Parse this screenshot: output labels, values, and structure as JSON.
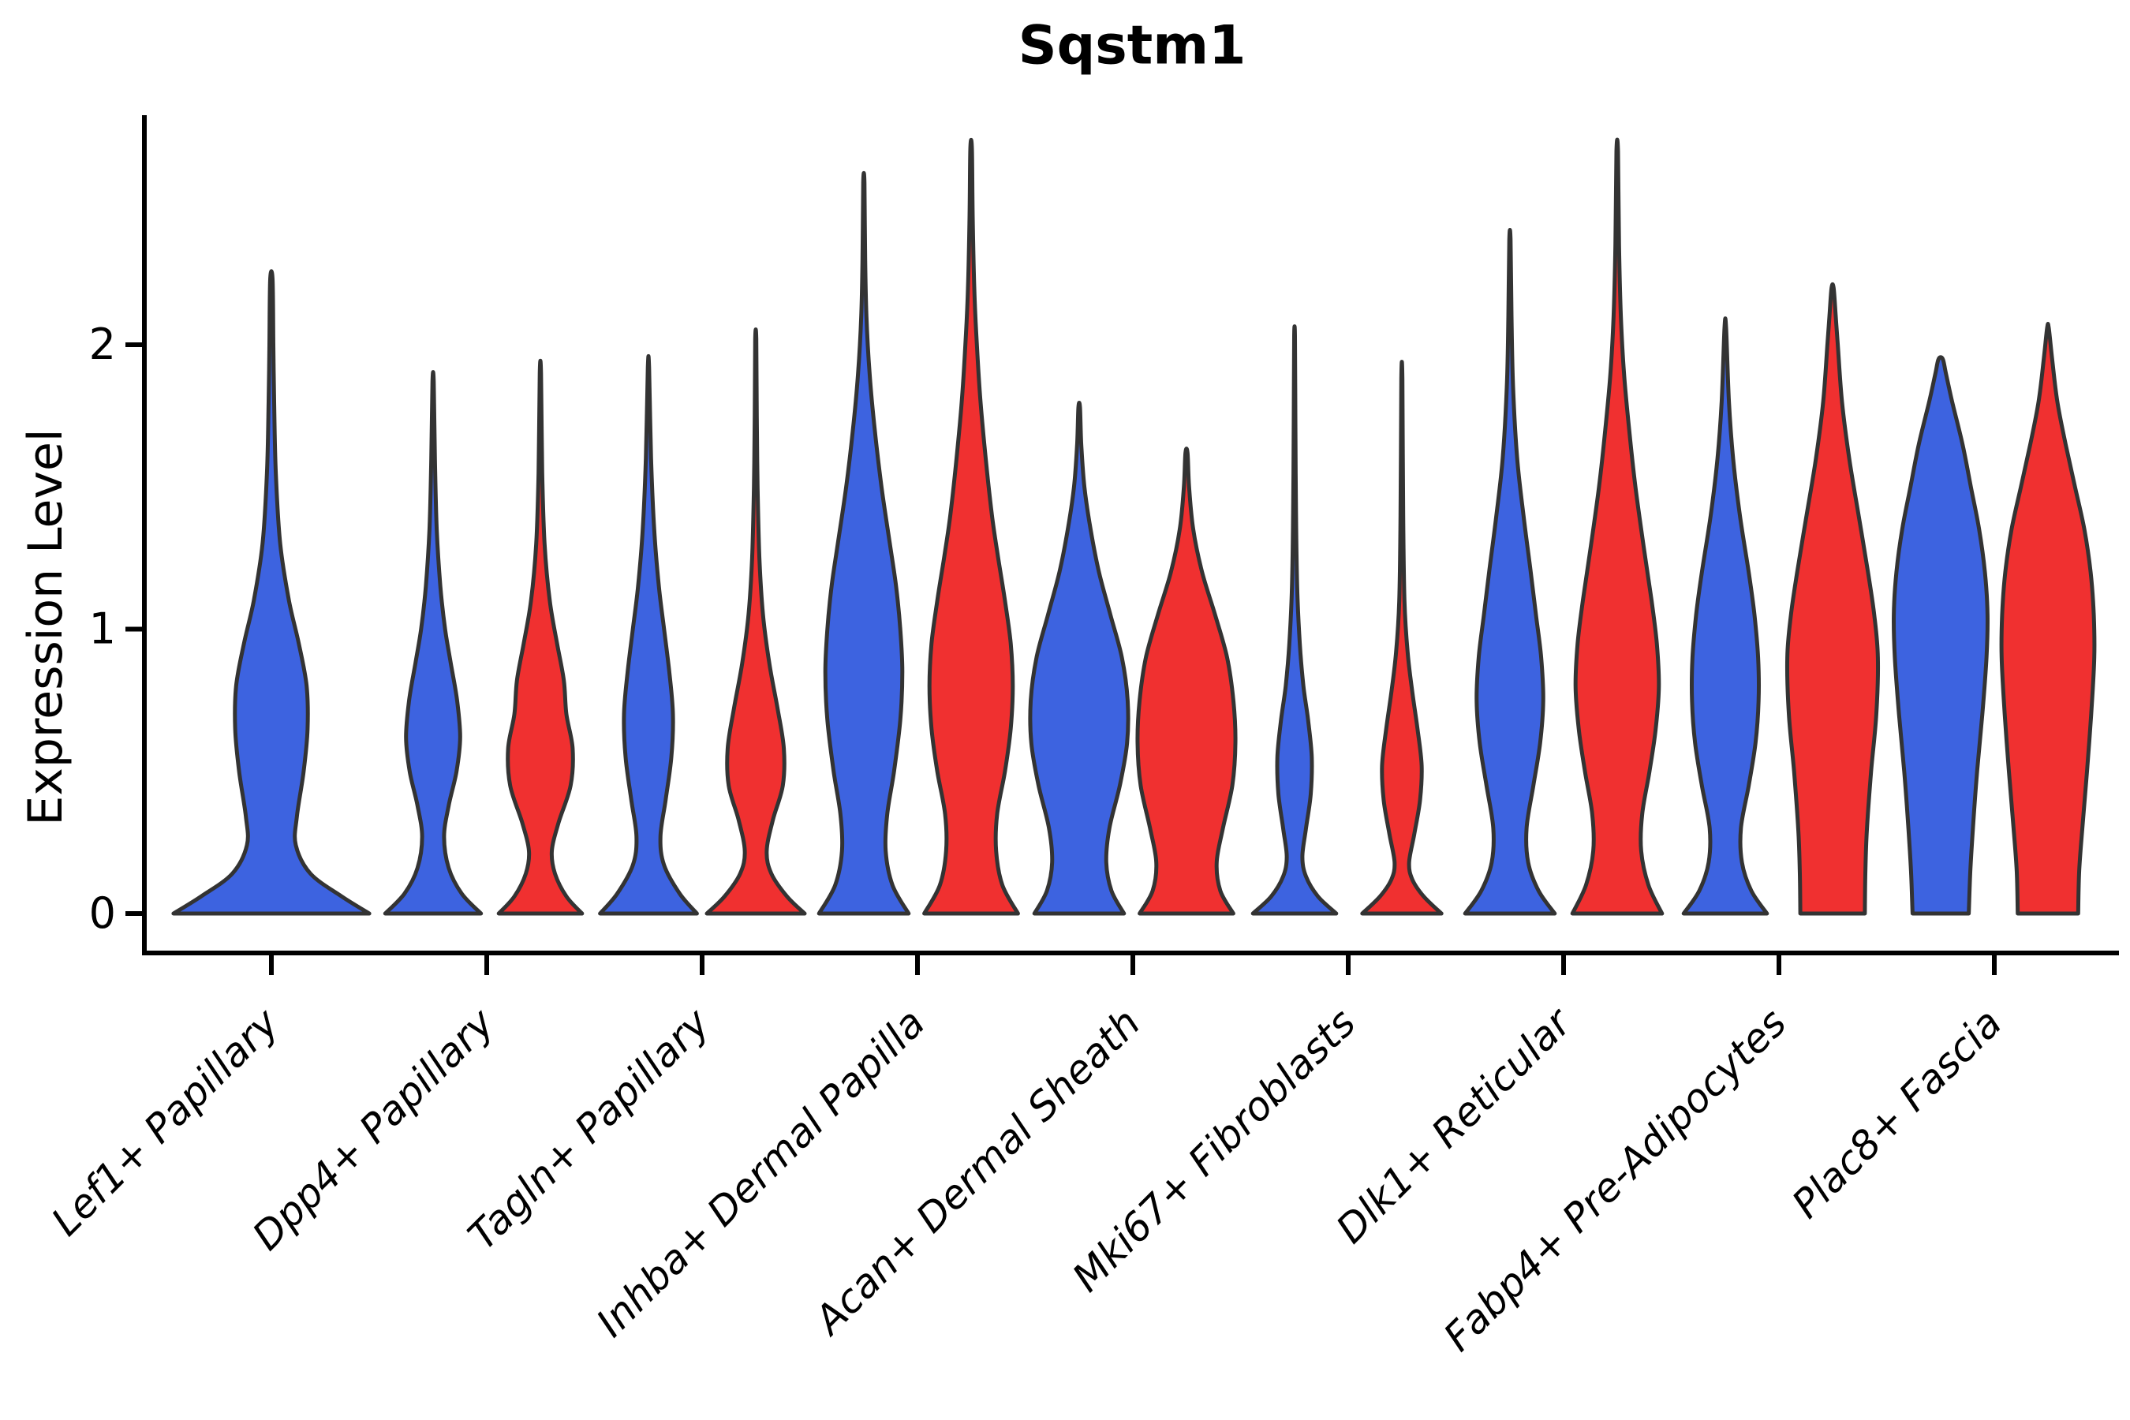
{
  "title": "Sqstm1",
  "y_axis": {
    "label": "Expression Level"
  },
  "colors": {
    "blue": "#3D63E0",
    "red": "#F03030",
    "outline": "#333333",
    "axis": "#000000",
    "background": "#FFFFFF"
  },
  "chart_data": {
    "type": "violin",
    "title": "Sqstm1",
    "ylabel": "Expression Level",
    "yticks": [
      0,
      1,
      2
    ],
    "ylim": [
      -0.15,
      2.85
    ],
    "grid": false,
    "legend": "none",
    "categories": [
      "Lef1+ Papillary",
      "Dpp4+ Papillary",
      "Tagln+ Papillary",
      "Inhba+ Dermal Papilla",
      "Acan+ Dermal Sheath",
      "Mki67+ Fibroblasts",
      "Dlk1+ Reticular",
      "Fabp4+ Pre-Adipocytes",
      "Plac8+ Fascia"
    ],
    "series_colors": {
      "blue": "#3D63E0",
      "red": "#F03030"
    },
    "violins": [
      {
        "category_index": 0,
        "split": "blue",
        "max_value": 2.23,
        "width_scale": 1.88,
        "profile": [
          [
            0,
            1.0
          ],
          [
            0.06,
            0.72
          ],
          [
            0.14,
            0.4
          ],
          [
            0.24,
            0.25
          ],
          [
            0.34,
            0.26
          ],
          [
            0.5,
            0.33
          ],
          [
            0.65,
            0.37
          ],
          [
            0.8,
            0.36
          ],
          [
            0.95,
            0.28
          ],
          [
            1.1,
            0.18
          ],
          [
            1.3,
            0.09
          ],
          [
            1.55,
            0.045
          ],
          [
            1.8,
            0.028
          ],
          [
            2.0,
            0.02
          ],
          [
            2.23,
            0.012
          ]
        ]
      },
      {
        "category_index": 1,
        "split": "blue",
        "max_value": 1.87,
        "width_scale": 1,
        "profile": [
          [
            0,
            0.92
          ],
          [
            0.07,
            0.55
          ],
          [
            0.16,
            0.3
          ],
          [
            0.27,
            0.21
          ],
          [
            0.38,
            0.3
          ],
          [
            0.5,
            0.45
          ],
          [
            0.62,
            0.52
          ],
          [
            0.75,
            0.46
          ],
          [
            0.88,
            0.34
          ],
          [
            1.0,
            0.23
          ],
          [
            1.15,
            0.14
          ],
          [
            1.35,
            0.07
          ],
          [
            1.6,
            0.035
          ],
          [
            1.87,
            0.012
          ]
        ]
      },
      {
        "category_index": 1,
        "split": "red",
        "max_value": 1.9,
        "width_scale": 1,
        "profile": [
          [
            0,
            0.8
          ],
          [
            0.06,
            0.5
          ],
          [
            0.14,
            0.28
          ],
          [
            0.22,
            0.22
          ],
          [
            0.32,
            0.35
          ],
          [
            0.45,
            0.58
          ],
          [
            0.58,
            0.62
          ],
          [
            0.7,
            0.5
          ],
          [
            0.82,
            0.45
          ],
          [
            0.95,
            0.32
          ],
          [
            1.1,
            0.18
          ],
          [
            1.3,
            0.08
          ],
          [
            1.55,
            0.035
          ],
          [
            1.9,
            0.012
          ]
        ]
      },
      {
        "category_index": 2,
        "split": "blue",
        "max_value": 1.92,
        "width_scale": 1,
        "profile": [
          [
            0,
            0.93
          ],
          [
            0.07,
            0.6
          ],
          [
            0.17,
            0.3
          ],
          [
            0.27,
            0.23
          ],
          [
            0.4,
            0.33
          ],
          [
            0.55,
            0.44
          ],
          [
            0.7,
            0.47
          ],
          [
            0.85,
            0.4
          ],
          [
            1.0,
            0.3
          ],
          [
            1.15,
            0.2
          ],
          [
            1.35,
            0.11
          ],
          [
            1.6,
            0.05
          ],
          [
            1.92,
            0.012
          ]
        ]
      },
      {
        "category_index": 2,
        "split": "red",
        "max_value": 2.02,
        "width_scale": 1,
        "profile": [
          [
            0,
            0.94
          ],
          [
            0.06,
            0.6
          ],
          [
            0.14,
            0.3
          ],
          [
            0.22,
            0.21
          ],
          [
            0.33,
            0.33
          ],
          [
            0.45,
            0.52
          ],
          [
            0.58,
            0.54
          ],
          [
            0.72,
            0.42
          ],
          [
            0.88,
            0.26
          ],
          [
            1.05,
            0.14
          ],
          [
            1.25,
            0.07
          ],
          [
            1.5,
            0.035
          ],
          [
            1.75,
            0.02
          ],
          [
            2.02,
            0.01
          ]
        ]
      },
      {
        "category_index": 3,
        "split": "blue",
        "max_value": 2.57,
        "width_scale": 1,
        "profile": [
          [
            0,
            0.86
          ],
          [
            0.1,
            0.55
          ],
          [
            0.22,
            0.42
          ],
          [
            0.35,
            0.45
          ],
          [
            0.5,
            0.58
          ],
          [
            0.68,
            0.7
          ],
          [
            0.85,
            0.74
          ],
          [
            1.0,
            0.7
          ],
          [
            1.15,
            0.62
          ],
          [
            1.3,
            0.5
          ],
          [
            1.5,
            0.34
          ],
          [
            1.7,
            0.21
          ],
          [
            1.9,
            0.11
          ],
          [
            2.1,
            0.05
          ],
          [
            2.3,
            0.025
          ],
          [
            2.57,
            0.012
          ]
        ]
      },
      {
        "category_index": 3,
        "split": "red",
        "max_value": 2.69,
        "width_scale": 1,
        "profile": [
          [
            0,
            0.9
          ],
          [
            0.1,
            0.6
          ],
          [
            0.22,
            0.48
          ],
          [
            0.35,
            0.5
          ],
          [
            0.5,
            0.65
          ],
          [
            0.65,
            0.76
          ],
          [
            0.8,
            0.8
          ],
          [
            0.95,
            0.76
          ],
          [
            1.1,
            0.65
          ],
          [
            1.25,
            0.52
          ],
          [
            1.4,
            0.4
          ],
          [
            1.6,
            0.28
          ],
          [
            1.8,
            0.18
          ],
          [
            2.0,
            0.11
          ],
          [
            2.2,
            0.06
          ],
          [
            2.45,
            0.03
          ],
          [
            2.69,
            0.015
          ]
        ]
      },
      {
        "category_index": 4,
        "split": "blue",
        "max_value": 1.78,
        "width_scale": 1,
        "profile": [
          [
            0,
            0.86
          ],
          [
            0.08,
            0.62
          ],
          [
            0.18,
            0.52
          ],
          [
            0.3,
            0.58
          ],
          [
            0.45,
            0.78
          ],
          [
            0.6,
            0.92
          ],
          [
            0.75,
            0.93
          ],
          [
            0.9,
            0.82
          ],
          [
            1.05,
            0.6
          ],
          [
            1.2,
            0.38
          ],
          [
            1.35,
            0.22
          ],
          [
            1.5,
            0.1
          ],
          [
            1.65,
            0.04
          ],
          [
            1.78,
            0.015
          ]
        ]
      },
      {
        "category_index": 4,
        "split": "red",
        "max_value": 1.62,
        "width_scale": 1,
        "profile": [
          [
            0,
            0.9
          ],
          [
            0.08,
            0.65
          ],
          [
            0.18,
            0.58
          ],
          [
            0.3,
            0.7
          ],
          [
            0.45,
            0.88
          ],
          [
            0.6,
            0.94
          ],
          [
            0.75,
            0.9
          ],
          [
            0.9,
            0.78
          ],
          [
            1.05,
            0.55
          ],
          [
            1.2,
            0.3
          ],
          [
            1.35,
            0.13
          ],
          [
            1.5,
            0.05
          ],
          [
            1.62,
            0.02
          ]
        ]
      },
      {
        "category_index": 5,
        "split": "blue",
        "max_value": 2.03,
        "width_scale": 1,
        "profile": [
          [
            0,
            0.8
          ],
          [
            0.06,
            0.45
          ],
          [
            0.13,
            0.22
          ],
          [
            0.2,
            0.15
          ],
          [
            0.3,
            0.22
          ],
          [
            0.42,
            0.31
          ],
          [
            0.55,
            0.33
          ],
          [
            0.68,
            0.26
          ],
          [
            0.8,
            0.17
          ],
          [
            0.95,
            0.1
          ],
          [
            1.15,
            0.05
          ],
          [
            1.45,
            0.025
          ],
          [
            1.75,
            0.015
          ],
          [
            2.03,
            0.008
          ]
        ]
      },
      {
        "category_index": 5,
        "split": "red",
        "max_value": 1.88,
        "width_scale": 1,
        "profile": [
          [
            0,
            0.76
          ],
          [
            0.06,
            0.42
          ],
          [
            0.12,
            0.2
          ],
          [
            0.18,
            0.14
          ],
          [
            0.28,
            0.24
          ],
          [
            0.4,
            0.35
          ],
          [
            0.52,
            0.38
          ],
          [
            0.65,
            0.3
          ],
          [
            0.78,
            0.2
          ],
          [
            0.92,
            0.11
          ],
          [
            1.1,
            0.05
          ],
          [
            1.4,
            0.025
          ],
          [
            1.88,
            0.01
          ]
        ]
      },
      {
        "category_index": 6,
        "split": "blue",
        "max_value": 2.37,
        "width_scale": 1,
        "profile": [
          [
            0,
            0.86
          ],
          [
            0.08,
            0.55
          ],
          [
            0.18,
            0.35
          ],
          [
            0.3,
            0.32
          ],
          [
            0.45,
            0.45
          ],
          [
            0.6,
            0.58
          ],
          [
            0.75,
            0.64
          ],
          [
            0.9,
            0.6
          ],
          [
            1.05,
            0.5
          ],
          [
            1.2,
            0.4
          ],
          [
            1.4,
            0.26
          ],
          [
            1.6,
            0.14
          ],
          [
            1.85,
            0.06
          ],
          [
            2.1,
            0.03
          ],
          [
            2.37,
            0.012
          ]
        ]
      },
      {
        "category_index": 6,
        "split": "red",
        "max_value": 2.68,
        "width_scale": 1,
        "profile": [
          [
            0,
            0.86
          ],
          [
            0.1,
            0.6
          ],
          [
            0.22,
            0.46
          ],
          [
            0.35,
            0.48
          ],
          [
            0.5,
            0.62
          ],
          [
            0.65,
            0.74
          ],
          [
            0.8,
            0.8
          ],
          [
            0.95,
            0.76
          ],
          [
            1.1,
            0.66
          ],
          [
            1.3,
            0.5
          ],
          [
            1.5,
            0.35
          ],
          [
            1.7,
            0.23
          ],
          [
            1.9,
            0.13
          ],
          [
            2.1,
            0.07
          ],
          [
            2.35,
            0.035
          ],
          [
            2.68,
            0.015
          ]
        ]
      },
      {
        "category_index": 7,
        "split": "blue",
        "max_value": 2.06,
        "width_scale": 1,
        "profile": [
          [
            0,
            0.8
          ],
          [
            0.08,
            0.5
          ],
          [
            0.18,
            0.32
          ],
          [
            0.3,
            0.3
          ],
          [
            0.45,
            0.45
          ],
          [
            0.6,
            0.58
          ],
          [
            0.75,
            0.64
          ],
          [
            0.9,
            0.63
          ],
          [
            1.05,
            0.56
          ],
          [
            1.2,
            0.45
          ],
          [
            1.4,
            0.28
          ],
          [
            1.6,
            0.15
          ],
          [
            1.8,
            0.07
          ],
          [
            2.06,
            0.015
          ]
        ]
      },
      {
        "category_index": 7,
        "split": "red",
        "max_value": 2.2,
        "width_scale": 1,
        "profile": [
          [
            0,
            0.62
          ],
          [
            0.15,
            0.63
          ],
          [
            0.3,
            0.66
          ],
          [
            0.5,
            0.74
          ],
          [
            0.7,
            0.84
          ],
          [
            0.9,
            0.87
          ],
          [
            1.05,
            0.8
          ],
          [
            1.2,
            0.68
          ],
          [
            1.4,
            0.5
          ],
          [
            1.6,
            0.32
          ],
          [
            1.8,
            0.18
          ],
          [
            2.0,
            0.1
          ],
          [
            2.1,
            0.06
          ],
          [
            2.2,
            0.02
          ]
        ]
      },
      {
        "category_index": 8,
        "split": "blue",
        "max_value": 1.95,
        "width_scale": 1,
        "profile": [
          [
            0,
            0.54
          ],
          [
            0.15,
            0.57
          ],
          [
            0.3,
            0.62
          ],
          [
            0.5,
            0.7
          ],
          [
            0.7,
            0.8
          ],
          [
            0.9,
            0.88
          ],
          [
            1.05,
            0.9
          ],
          [
            1.2,
            0.85
          ],
          [
            1.35,
            0.74
          ],
          [
            1.5,
            0.58
          ],
          [
            1.65,
            0.42
          ],
          [
            1.8,
            0.22
          ],
          [
            1.9,
            0.1
          ],
          [
            1.95,
            0.04
          ]
        ]
      },
      {
        "category_index": 8,
        "split": "red",
        "max_value": 2.06,
        "width_scale": 1,
        "profile": [
          [
            0,
            0.58
          ],
          [
            0.15,
            0.6
          ],
          [
            0.3,
            0.66
          ],
          [
            0.5,
            0.75
          ],
          [
            0.7,
            0.83
          ],
          [
            0.9,
            0.89
          ],
          [
            1.05,
            0.88
          ],
          [
            1.2,
            0.82
          ],
          [
            1.35,
            0.7
          ],
          [
            1.5,
            0.52
          ],
          [
            1.65,
            0.34
          ],
          [
            1.8,
            0.18
          ],
          [
            1.95,
            0.08
          ],
          [
            2.06,
            0.015
          ]
        ]
      }
    ]
  }
}
